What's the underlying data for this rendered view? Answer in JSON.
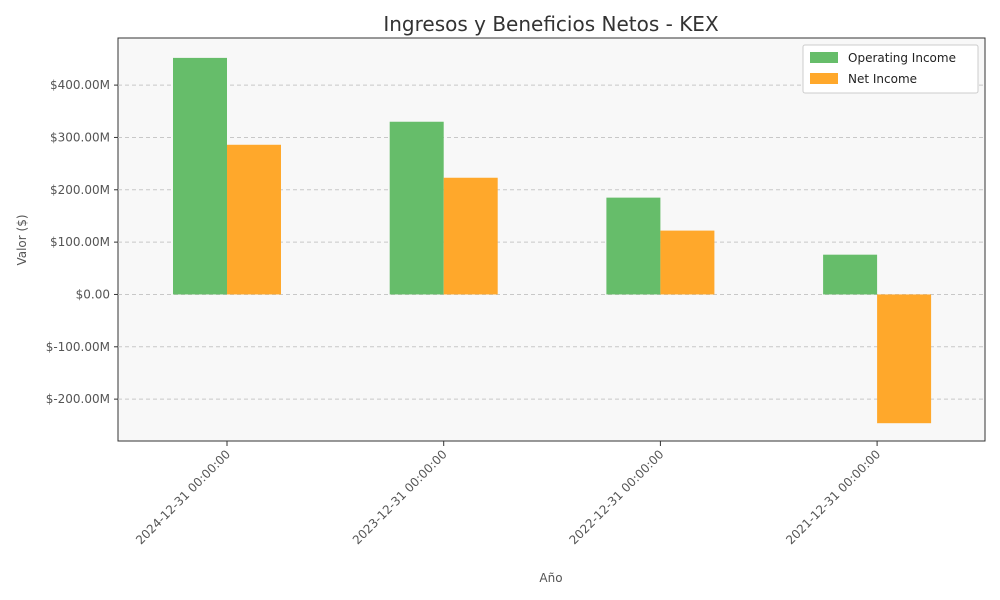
{
  "chart_data": {
    "type": "bar",
    "title": "Ingresos y Beneficios Netos - KEX",
    "xlabel": "Año",
    "ylabel": "Valor ($)",
    "categories": [
      "2024-12-31 00:00:00",
      "2023-12-31 00:00:00",
      "2022-12-31 00:00:00",
      "2021-12-31 00:00:00"
    ],
    "series": [
      {
        "name": "Operating Income",
        "values": [
          452000000,
          330000000,
          185000000,
          76000000
        ],
        "color": "#66bd6a"
      },
      {
        "name": "Net Income",
        "values": [
          286000000,
          223000000,
          122000000,
          -246000000
        ],
        "color": "#ffa82b"
      }
    ],
    "ylim": [
      -280000000,
      490000000
    ],
    "yticks": [
      -200000000,
      -100000000,
      0,
      100000000,
      200000000,
      300000000,
      400000000
    ],
    "ytick_labels": [
      "$-200.00M",
      "$-100.00M",
      "$0.00",
      "$100.00M",
      "$200.00M",
      "$300.00M",
      "$400.00M"
    ],
    "grid": "horizontal dashed",
    "legend_position": "top-right",
    "background": "#f8f8f8"
  }
}
